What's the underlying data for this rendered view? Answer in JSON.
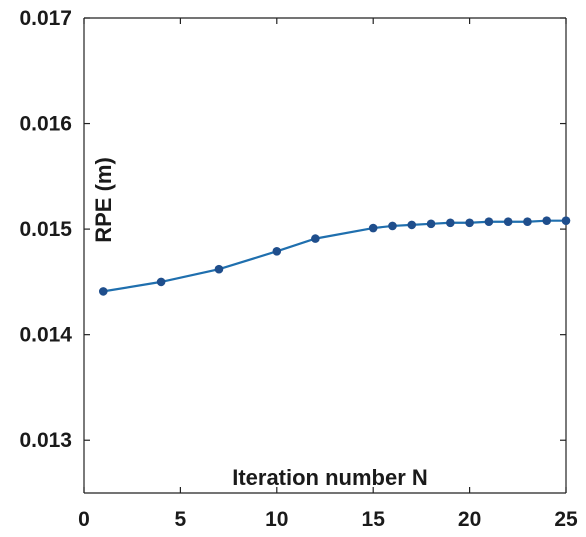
{
  "chart_data": {
    "type": "line",
    "title": "",
    "xlabel": "Iteration number N",
    "ylabel": "RPE (m)",
    "xlim": [
      0,
      25
    ],
    "ylim": [
      0.0125,
      0.017
    ],
    "xticks": [
      0,
      5,
      10,
      15,
      20,
      25
    ],
    "xtick_labels": [
      "0",
      "5",
      "10",
      "15",
      "20",
      "25"
    ],
    "yticks": [
      0.013,
      0.014,
      0.015,
      0.016,
      0.017
    ],
    "ytick_labels": [
      "0.013",
      "0.014",
      "0.015",
      "0.016",
      "0.017"
    ],
    "grid": false,
    "legend": "none",
    "series": [
      {
        "color": "#1f6fae",
        "marker_color": "#1f4e8c",
        "x": [
          1,
          4,
          7,
          10,
          12,
          15,
          16,
          17,
          18,
          19,
          20,
          21,
          22,
          23,
          24,
          25
        ],
        "values": [
          0.01441,
          0.0145,
          0.01462,
          0.01479,
          0.01491,
          0.01501,
          0.01503,
          0.01504,
          0.01505,
          0.01506,
          0.01506,
          0.01507,
          0.01507,
          0.01507,
          0.01508,
          0.01508
        ]
      }
    ]
  }
}
